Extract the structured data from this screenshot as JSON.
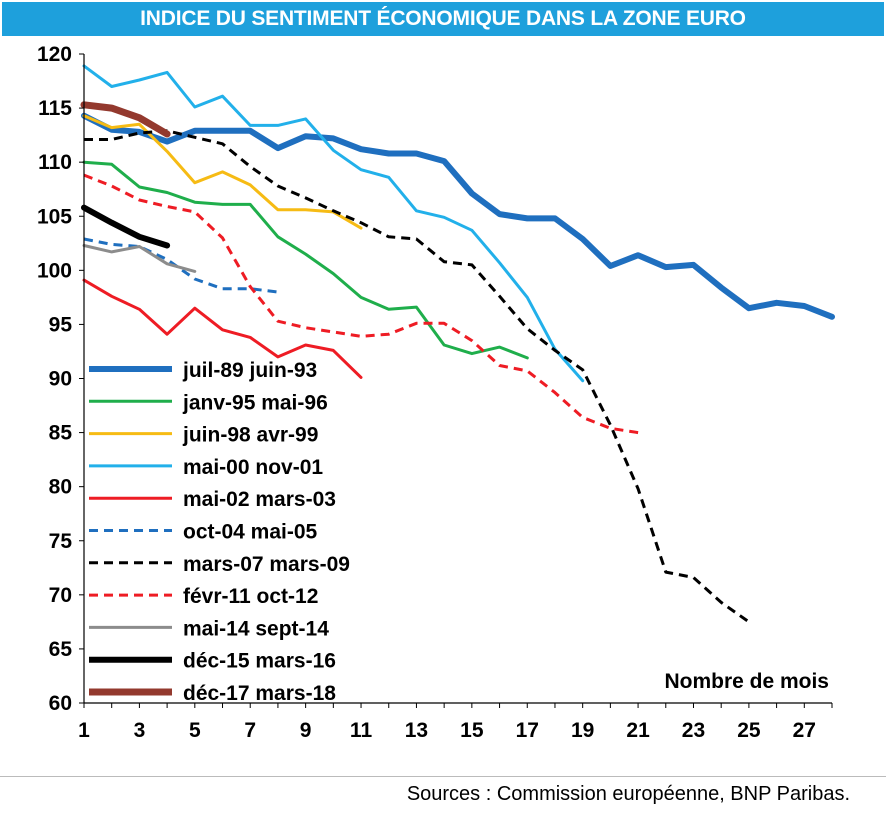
{
  "title": "INDICE DU SENTIMENT ÉCONOMIQUE DANS LA ZONE EURO",
  "source": "Sources : Commission européenne, BNP Paribas.",
  "chart_data": {
    "type": "line",
    "title": "INDICE DU SENTIMENT ÉCONOMIQUE DANS LA ZONE EURO",
    "xlabel": "Nombre de mois",
    "ylabel": "",
    "xlim": [
      1,
      28
    ],
    "ylim": [
      60,
      120
    ],
    "xticks": [
      1,
      3,
      5,
      7,
      9,
      11,
      13,
      15,
      17,
      19,
      21,
      23,
      25,
      27
    ],
    "yticks": [
      60,
      65,
      70,
      75,
      80,
      85,
      90,
      95,
      100,
      105,
      110,
      115,
      120
    ],
    "grid": false,
    "legend_position": "left",
    "series": [
      {
        "name": "juil-89   juin-93",
        "color": "#1f6fbf",
        "width": 6,
        "dash": "solid",
        "values": [
          114.3,
          113,
          112.8,
          111.9,
          112.9,
          112.9,
          112.9,
          111.3,
          112.4,
          112.2,
          111.2,
          110.8,
          110.8,
          110.1,
          107.1,
          105.2,
          104.8,
          104.8,
          102.9,
          100.4,
          101.4,
          100.3,
          100.5,
          98.4,
          96.5,
          97,
          96.7,
          95.7
        ]
      },
      {
        "name": "janv-95   mai-96",
        "color": "#1fae4b",
        "width": 3,
        "dash": "solid",
        "values": [
          110,
          109.8,
          107.7,
          107.2,
          106.3,
          106.1,
          106.1,
          103.1,
          101.5,
          99.7,
          97.5,
          96.4,
          96.6,
          93.1,
          92.3,
          92.9,
          91.9
        ]
      },
      {
        "name": "juin-98   avr-99",
        "color": "#f6bb14",
        "width": 3,
        "dash": "solid",
        "values": [
          114.3,
          113.2,
          113.5,
          111,
          108.1,
          109.1,
          107.9,
          105.6,
          105.6,
          105.4,
          103.9
        ]
      },
      {
        "name": "mai-00   nov-01",
        "color": "#22b0ea",
        "width": 3,
        "dash": "solid",
        "values": [
          118.9,
          117,
          117.6,
          118.3,
          115.1,
          116.1,
          113.4,
          113.4,
          114,
          111.1,
          109.3,
          108.6,
          105.5,
          104.9,
          103.7,
          100.7,
          97.5,
          92.7,
          89.8
        ]
      },
      {
        "name": "mai-02   mars-03",
        "color": "#ee1c24",
        "width": 3,
        "dash": "solid",
        "values": [
          99.1,
          97.6,
          96.4,
          94.1,
          96.5,
          94.5,
          93.8,
          92,
          93.1,
          92.6,
          90.1
        ]
      },
      {
        "name": "oct-04   mai-05",
        "color": "#1f6fbf",
        "width": 3,
        "dash": "dash",
        "values": [
          102.9,
          102.4,
          102.2,
          101,
          99.2,
          98.3,
          98.3,
          98
        ]
      },
      {
        "name": "mars-07   mars-09",
        "color": "#000000",
        "width": 3,
        "dash": "dash",
        "values": [
          112.1,
          112.1,
          112.7,
          112.9,
          112.3,
          111.7,
          109.6,
          107.8,
          106.7,
          105.5,
          104.4,
          103.1,
          102.9,
          100.8,
          100.5,
          97.6,
          94.6,
          92.6,
          90.8,
          85.7,
          79.8,
          72.1,
          71.6,
          69.3,
          67.5
        ]
      },
      {
        "name": "févr-11   oct-12",
        "color": "#ee1c24",
        "width": 3,
        "dash": "dash",
        "values": [
          108.8,
          107.8,
          106.5,
          105.9,
          105.4,
          103,
          98.5,
          95.3,
          94.7,
          94.3,
          93.9,
          94.1,
          95.1,
          95.1,
          93.5,
          91.2,
          90.7,
          88.7,
          86.4,
          85.4,
          85
        ]
      },
      {
        "name": "mai-14   sept-14",
        "color": "#8c8c8c",
        "width": 3,
        "dash": "solid",
        "values": [
          102.3,
          101.7,
          102.2,
          100.6,
          99.9
        ]
      },
      {
        "name": "déc-15   mars-16",
        "color": "#000000",
        "width": 6,
        "dash": "solid",
        "values": [
          105.8,
          104.4,
          103.1,
          102.3
        ]
      },
      {
        "name": "déc-17   mars-18",
        "color": "#93392e",
        "width": 7,
        "dash": "solid",
        "values": [
          115.3,
          115,
          114.1,
          112.6
        ]
      }
    ]
  }
}
